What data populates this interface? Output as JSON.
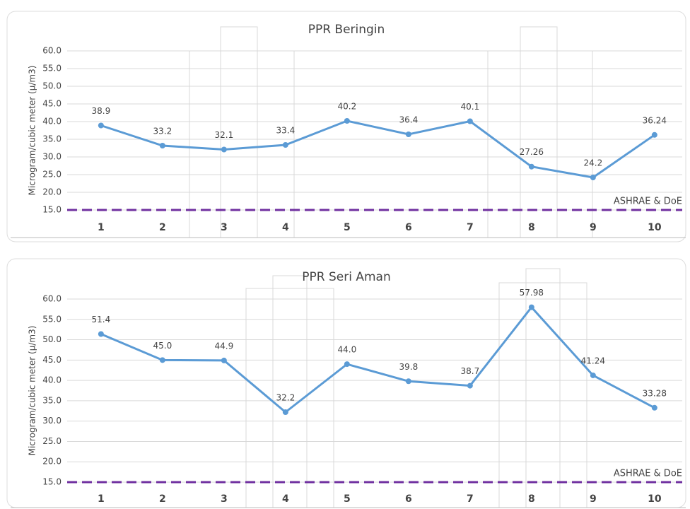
{
  "chart_data": [
    {
      "type": "line",
      "title": "PPR Beringin",
      "y_label": "Microgram/cubic meter (µ/m3)",
      "categories": [
        "1",
        "2",
        "3",
        "4",
        "5",
        "6",
        "7",
        "8",
        "9",
        "10"
      ],
      "series": [
        {
          "color": "#5b9bd5",
          "values": [
            38.9,
            33.2,
            32.1,
            33.4,
            40.2,
            36.4,
            40.1,
            27.26,
            24.2,
            36.24
          ]
        }
      ],
      "ylim": [
        15,
        60
      ],
      "yticks": [
        {
          "value": 15,
          "label": "15.0"
        },
        {
          "value": 20,
          "label": "20.0"
        },
        {
          "value": 25,
          "label": "25.0"
        },
        {
          "value": 30,
          "label": "30.0"
        },
        {
          "value": 35,
          "label": "35.0"
        },
        {
          "value": 40,
          "label": "40.0"
        },
        {
          "value": 45,
          "label": "45.0"
        },
        {
          "value": 50,
          "label": "50.0"
        },
        {
          "value": 55,
          "label": "55.0"
        },
        {
          "value": 60,
          "label": "60.0"
        }
      ],
      "grid": true,
      "threshold": {
        "value": 15,
        "label": "ASHRAE & DoE",
        "color": "#7030a0"
      }
    },
    {
      "type": "line",
      "title": "PPR Seri Aman",
      "y_label": "Microgram/cubic meter (µ/m3)",
      "categories": [
        "1",
        "2",
        "3",
        "4",
        "5",
        "6",
        "7",
        "8",
        "9",
        "10"
      ],
      "series": [
        {
          "color": "#5b9bd5",
          "values": [
            51.4,
            45,
            44.9,
            32.2,
            44,
            39.8,
            38.7,
            57.98,
            41.24,
            33.28
          ],
          "value_labels": [
            "51.4",
            "45.0",
            "44.9",
            "32.2",
            "44.0",
            "39.8",
            "38.7",
            "57.98",
            "41.24",
            "33.28"
          ]
        }
      ],
      "ylim": [
        15,
        60
      ],
      "yticks": [
        {
          "value": 15,
          "label": "15.0"
        },
        {
          "value": 20,
          "label": "20.0"
        },
        {
          "value": 25,
          "label": "25.0"
        },
        {
          "value": 30,
          "label": "30.0"
        },
        {
          "value": 35,
          "label": "35.0"
        },
        {
          "value": 40,
          "label": "40.0"
        },
        {
          "value": 45,
          "label": "45.0"
        },
        {
          "value": 50,
          "label": "50.0"
        },
        {
          "value": 55,
          "label": "55.0"
        },
        {
          "value": 60,
          "label": "60.0"
        }
      ],
      "grid": true,
      "threshold": {
        "value": 15,
        "label": "ASHRAE & DoE",
        "color": "#7030a0"
      }
    }
  ]
}
